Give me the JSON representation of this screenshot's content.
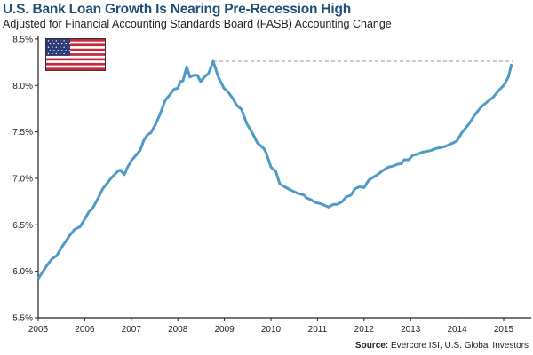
{
  "chart_data": {
    "type": "line",
    "title": "U.S. Bank Loan Growth Is Nearing Pre-Recession High",
    "subtitle": "Adjusted for Financial Accounting Standards Board (FASB) Accounting Change",
    "source_label": "Source:",
    "source_text": "Evercore ISI, U.S. Global Investors",
    "xlim": [
      2005,
      2015.6
    ],
    "ylim": [
      5.5,
      8.5
    ],
    "xticks": [
      "2005",
      "2006",
      "2007",
      "2008",
      "2009",
      "2010",
      "2011",
      "2012",
      "2013",
      "2014",
      "2015"
    ],
    "yticks": [
      "5.5%",
      "6.0%",
      "6.5%",
      "7.0%",
      "7.5%",
      "8.0%",
      "8.5%"
    ],
    "grid": false,
    "line_color": "#4f9ac6",
    "reference_line": {
      "y": 8.26,
      "from": 2008.76,
      "to": 2015.2,
      "style": "dashed",
      "color": "#999999"
    },
    "icon": "us-flag-icon",
    "x": [
      2005.0,
      2005.17,
      2005.29,
      2005.4,
      2005.52,
      2005.67,
      2005.78,
      2005.9,
      2006.01,
      2006.09,
      2006.16,
      2006.28,
      2006.39,
      2006.47,
      2006.58,
      2006.7,
      2006.76,
      2006.85,
      2006.91,
      2007.0,
      2007.12,
      2007.19,
      2007.27,
      2007.35,
      2007.42,
      2007.52,
      2007.61,
      2007.73,
      2007.81,
      2007.92,
      2008.0,
      2008.05,
      2008.11,
      2008.19,
      2008.26,
      2008.34,
      2008.42,
      2008.49,
      2008.57,
      2008.66,
      2008.76,
      2008.87,
      2008.99,
      2009.08,
      2009.18,
      2009.26,
      2009.37,
      2009.48,
      2009.62,
      2009.71,
      2009.85,
      2009.9,
      2010.0,
      2010.1,
      2010.19,
      2010.29,
      2010.44,
      2010.57,
      2010.71,
      2010.76,
      2010.86,
      2010.95,
      2011.05,
      2011.15,
      2011.24,
      2011.34,
      2011.43,
      2011.53,
      2011.62,
      2011.72,
      2011.81,
      2011.91,
      2012.0,
      2012.1,
      2012.19,
      2012.29,
      2012.39,
      2012.52,
      2012.61,
      2012.71,
      2012.81,
      2012.86,
      2012.96,
      2013.05,
      2013.15,
      2013.24,
      2013.34,
      2013.44,
      2013.53,
      2013.63,
      2013.72,
      2013.82,
      2013.99,
      2014.1,
      2014.26,
      2014.39,
      2014.52,
      2014.64,
      2014.77,
      2014.9,
      2015.0,
      2015.1,
      2015.17
    ],
    "y": [
      5.92,
      6.05,
      6.13,
      6.17,
      6.27,
      6.38,
      6.45,
      6.48,
      6.57,
      6.64,
      6.67,
      6.78,
      6.89,
      6.94,
      7.01,
      7.07,
      7.09,
      7.04,
      7.11,
      7.19,
      7.26,
      7.3,
      7.41,
      7.47,
      7.49,
      7.58,
      7.68,
      7.84,
      7.89,
      7.96,
      7.97,
      8.04,
      8.05,
      8.2,
      8.09,
      8.11,
      8.11,
      8.04,
      8.09,
      8.13,
      8.26,
      8.09,
      7.97,
      7.93,
      7.86,
      7.79,
      7.74,
      7.59,
      7.47,
      7.38,
      7.32,
      7.27,
      7.12,
      7.08,
      6.94,
      6.91,
      6.87,
      6.84,
      6.82,
      6.79,
      6.77,
      6.74,
      6.73,
      6.71,
      6.69,
      6.72,
      6.72,
      6.75,
      6.8,
      6.82,
      6.89,
      6.91,
      6.9,
      6.98,
      7.01,
      7.04,
      7.08,
      7.12,
      7.13,
      7.15,
      7.16,
      7.2,
      7.2,
      7.25,
      7.26,
      7.28,
      7.29,
      7.3,
      7.32,
      7.33,
      7.34,
      7.36,
      7.4,
      7.49,
      7.59,
      7.69,
      7.77,
      7.82,
      7.87,
      7.95,
      8.0,
      8.09,
      8.23
    ]
  }
}
